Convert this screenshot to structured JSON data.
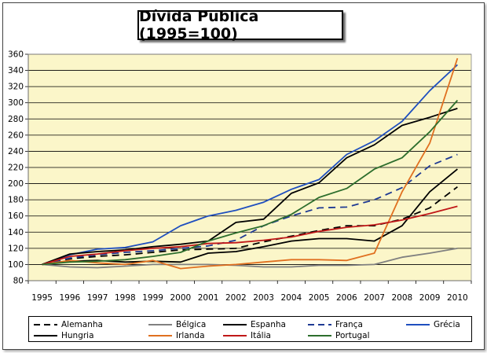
{
  "chart_data": {
    "type": "line",
    "title": "Dívida Publica (1995=100)",
    "x": [
      "1995",
      "1996",
      "1997",
      "1998",
      "1999",
      "2000",
      "2001",
      "2002",
      "2003",
      "2004",
      "2005",
      "2006",
      "2007",
      "2008",
      "2009",
      "2010"
    ],
    "ylim": [
      80,
      360
    ],
    "yticks": [
      80,
      100,
      120,
      140,
      160,
      180,
      200,
      220,
      240,
      260,
      280,
      300,
      320,
      340,
      360
    ],
    "grid": true,
    "legend_position": "bottom",
    "series": [
      {
        "name": "Alemanha",
        "color": "#000000",
        "dash": true,
        "values": [
          100,
          107,
          110,
          112,
          115,
          118,
          119,
          120,
          128,
          135,
          142,
          148,
          148,
          156,
          170,
          196
        ]
      },
      {
        "name": "Bélgica",
        "color": "#808080",
        "dash": false,
        "values": [
          100,
          97,
          96,
          98,
          100,
          100,
          100,
          99,
          97,
          97,
          99,
          99,
          100,
          109,
          114,
          120
        ]
      },
      {
        "name": "Espanha",
        "color": "#000000",
        "dash": false,
        "values": [
          100,
          104,
          105,
          103,
          104,
          103,
          114,
          116,
          122,
          129,
          132,
          132,
          129,
          148,
          190,
          218
        ]
      },
      {
        "name": "França",
        "color": "#1f3a93",
        "dash": true,
        "values": [
          100,
          108,
          112,
          115,
          117,
          120,
          123,
          130,
          148,
          160,
          170,
          171,
          180,
          195,
          222,
          236
        ]
      },
      {
        "name": "Grécia",
        "color": "#1f4fbf",
        "dash": false,
        "values": [
          100,
          112,
          119,
          121,
          128,
          148,
          160,
          167,
          177,
          193,
          205,
          236,
          253,
          277,
          315,
          347
        ]
      },
      {
        "name": "Hungria",
        "color": "#000000",
        "dash": false,
        "values": [
          100,
          113,
          116,
          118,
          122,
          125,
          129,
          152,
          156,
          188,
          201,
          232,
          248,
          272,
          282,
          293
        ]
      },
      {
        "name": "Irlanda",
        "color": "#e07020",
        "dash": false,
        "values": [
          100,
          105,
          102,
          100,
          105,
          95,
          98,
          100,
          103,
          106,
          106,
          105,
          114,
          190,
          250,
          355
        ]
      },
      {
        "name": "Itália",
        "color": "#c01818",
        "dash": false,
        "values": [
          100,
          110,
          113,
          117,
          120,
          122,
          126,
          127,
          130,
          134,
          141,
          146,
          149,
          155,
          163,
          172
        ]
      },
      {
        "name": "Portugal",
        "color": "#2d6e2d",
        "dash": false,
        "values": [
          100,
          103,
          104,
          106,
          110,
          115,
          129,
          139,
          148,
          162,
          183,
          194,
          218,
          232,
          264,
          303
        ]
      }
    ]
  }
}
